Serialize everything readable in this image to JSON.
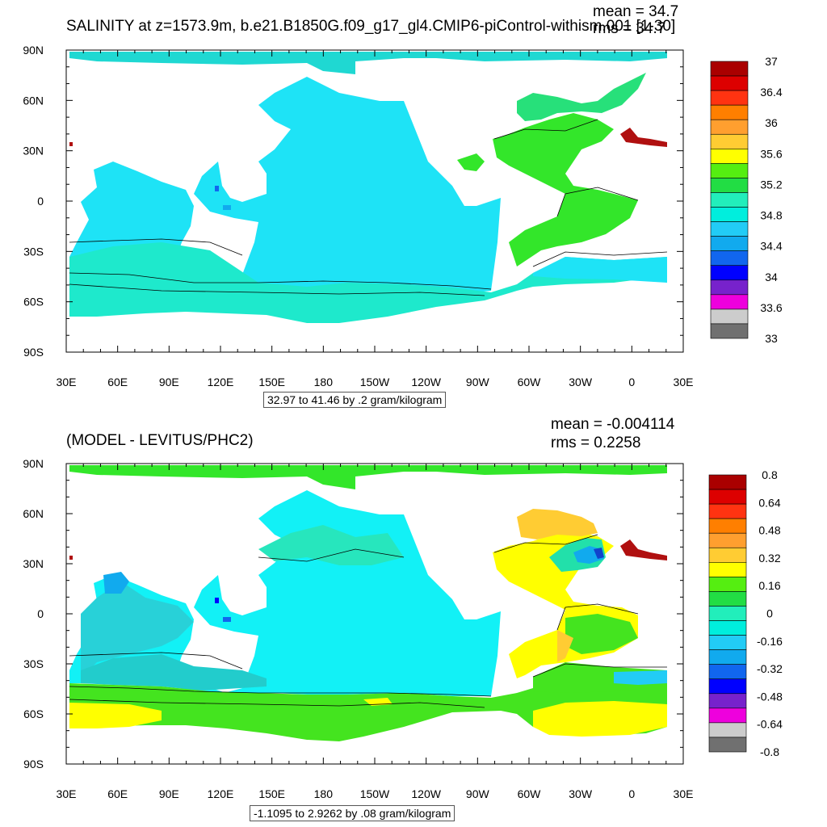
{
  "chart_data": [
    {
      "type": "heatmap",
      "title": "SALINITY at z=1573.9m, b.e21.B1850G.f09_g17_gl4.CMIP6-piControl-withism.001 [1-30]",
      "stats": [
        "mean = 34.7",
        "rms = 34.7"
      ],
      "range_note": "32.97 to 41.46 by .2 gram/kilogram",
      "x_ticks": [
        "30E",
        "60E",
        "90E",
        "120E",
        "150E",
        "180",
        "150W",
        "120W",
        "90W",
        "60W",
        "30W",
        "0",
        "30E"
      ],
      "y_ticks": [
        "90N",
        "60N",
        "30N",
        "0",
        "30S",
        "60S",
        "90S"
      ],
      "colorbar_labels": [
        "37",
        "36.4",
        "36",
        "35.6",
        "35.2",
        "34.8",
        "34.4",
        "34",
        "33.6",
        "33"
      ],
      "colorbar_colors": [
        "#aa0000",
        "#dd0000",
        "#ff3311",
        "#ff7f00",
        "#ff9f2f",
        "#ffcc33",
        "#ffff00",
        "#55ee11",
        "#22dd44",
        "#22eebb",
        "#00eedd",
        "#22ccf6",
        "#11aaee",
        "#1166ee",
        "#0000ff",
        "#7722cc",
        "#ee00dd",
        "#cccccc",
        "#707070"
      ]
    },
    {
      "type": "heatmap",
      "title": "(MODEL - LEVITUS/PHC2)",
      "stats": [
        "mean = -0.004114",
        "rms = 0.2258"
      ],
      "range_note": "-1.1095 to 2.9262 by .08 gram/kilogram",
      "x_ticks": [
        "30E",
        "60E",
        "90E",
        "120E",
        "150E",
        "180",
        "150W",
        "120W",
        "90W",
        "60W",
        "30W",
        "0",
        "30E"
      ],
      "y_ticks": [
        "90N",
        "60N",
        "30N",
        "0",
        "30S",
        "60S",
        "90S"
      ],
      "colorbar_labels": [
        "0.8",
        "0.64",
        "0.48",
        "0.32",
        "0.16",
        "0",
        "-0.16",
        "-0.32",
        "-0.48",
        "-0.64",
        "-0.8"
      ],
      "colorbar_colors": [
        "#aa0000",
        "#dd0000",
        "#ff3311",
        "#ff7f00",
        "#ff9f2f",
        "#ffcc33",
        "#ffff00",
        "#55ee11",
        "#22dd44",
        "#22eebb",
        "#00eedd",
        "#22ccf6",
        "#11aaee",
        "#1166ee",
        "#0000ff",
        "#7722cc",
        "#ee00dd",
        "#cccccc",
        "#707070"
      ]
    }
  ]
}
